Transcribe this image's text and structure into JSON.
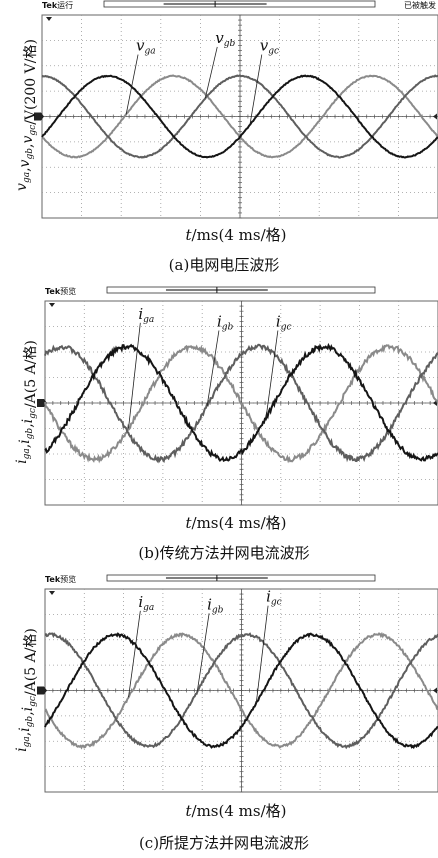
{
  "panels": [
    {
      "id": "a",
      "status_left": "Tek 运行",
      "status_right": "已被触发",
      "xlabel": "t/ms(4 ms/格)",
      "ylabel": "v_ga,v_gb,v_gc/V(200 V/格)",
      "caption": "(a)电网电压波形"
    },
    {
      "id": "b",
      "status_left": "Tek 预览",
      "status_right": "",
      "xlabel": "t/ms(4 ms/格)",
      "ylabel": "i_ga,i_gb,i_gc/A(5 A/格)",
      "caption": "(b)传统方法并网电流波形"
    },
    {
      "id": "c",
      "status_left": "Tek 预览",
      "status_right": "",
      "xlabel": "t/ms(4 ms/格)",
      "ylabel": "i_ga,i_gb,i_gc/A(5 A/格)",
      "caption": "(c)所提方法并网电流波形"
    }
  ],
  "chart_data": [
    {
      "type": "line",
      "title": "(a)电网电压波形",
      "xlabel": "t/ms(4 ms/格)",
      "ylabel": "v_ga,v_gb,v_gc/V(200 V/格)",
      "x_divisions": 10,
      "y_divisions": 8,
      "xlim": [
        0,
        40
      ],
      "ylim": [
        -4,
        4
      ],
      "grid": true,
      "series": [
        {
          "name": "v_ga",
          "amplitude_div": 1.6,
          "period_ms": 20,
          "phase_deg": 210,
          "color": "#8a8a8a",
          "noise_div": 0.02
        },
        {
          "name": "v_gb",
          "amplitude_div": 1.6,
          "period_ms": 20,
          "phase_deg": 90,
          "color": "#5e5e5e",
          "noise_div": 0.02
        },
        {
          "name": "v_gc",
          "amplitude_div": 1.6,
          "period_ms": 20,
          "phase_deg": -30,
          "color": "#151515",
          "noise_div": 0.02
        }
      ],
      "labels": [
        {
          "series": "v_ga",
          "base": "v",
          "sub": "ga",
          "x_ms": 9.5,
          "y_div": 2.6
        },
        {
          "series": "v_gb",
          "base": "v",
          "sub": "gb",
          "x_ms": 17.5,
          "y_div": 2.9
        },
        {
          "series": "v_gc",
          "base": "v",
          "sub": "gc",
          "x_ms": 22.0,
          "y_div": 2.6
        }
      ]
    },
    {
      "type": "line",
      "title": "(b)传统方法并网电流波形",
      "xlabel": "t/ms(4 ms/格)",
      "ylabel": "i_ga,i_gb,i_gc/A(5 A/格)",
      "x_divisions": 10,
      "y_divisions": 8,
      "xlim": [
        0,
        40
      ],
      "ylim": [
        -4,
        4
      ],
      "grid": true,
      "series": [
        {
          "name": "i_ga",
          "amplitude_div": 2.2,
          "period_ms": 20,
          "phase_deg": 180,
          "color": "#8a8a8a",
          "noise_div": 0.09
        },
        {
          "name": "i_gb",
          "amplitude_div": 2.2,
          "period_ms": 20,
          "phase_deg": 60,
          "color": "#5e5e5e",
          "noise_div": 0.09
        },
        {
          "name": "i_gc",
          "amplitude_div": 2.2,
          "period_ms": 20,
          "phase_deg": -60,
          "color": "#151515",
          "noise_div": 0.09
        }
      ],
      "labels": [
        {
          "series": "i_ga",
          "base": "i",
          "sub": "ga",
          "x_ms": 9.5,
          "y_div": 3.3
        },
        {
          "series": "i_gb",
          "base": "i",
          "sub": "gb",
          "x_ms": 17.5,
          "y_div": 3.0
        },
        {
          "series": "i_gc",
          "base": "i",
          "sub": "gc",
          "x_ms": 23.5,
          "y_div": 3.0
        }
      ]
    },
    {
      "type": "line",
      "title": "(c)所提方法并网电流波形",
      "xlabel": "t/ms(4 ms/格)",
      "ylabel": "i_ga,i_gb,i_gc/A(5 A/格)",
      "x_divisions": 10,
      "y_divisions": 8,
      "xlim": [
        0,
        40
      ],
      "ylim": [
        -4,
        4
      ],
      "grid": true,
      "series": [
        {
          "name": "i_ga",
          "amplitude_div": 2.2,
          "period_ms": 20,
          "phase_deg": 200,
          "color": "#8a8a8a",
          "noise_div": 0.05
        },
        {
          "name": "i_gb",
          "amplitude_div": 2.2,
          "period_ms": 20,
          "phase_deg": 80,
          "color": "#5e5e5e",
          "noise_div": 0.05
        },
        {
          "name": "i_gc",
          "amplitude_div": 2.2,
          "period_ms": 20,
          "phase_deg": -40,
          "color": "#151515",
          "noise_div": 0.05
        }
      ],
      "labels": [
        {
          "series": "i_ga",
          "base": "i",
          "sub": "ga",
          "x_ms": 9.5,
          "y_div": 3.3
        },
        {
          "series": "i_gb",
          "base": "i",
          "sub": "gb",
          "x_ms": 16.5,
          "y_div": 3.2
        },
        {
          "series": "i_gc",
          "base": "i",
          "sub": "gc",
          "x_ms": 22.5,
          "y_div": 3.5
        }
      ]
    }
  ]
}
